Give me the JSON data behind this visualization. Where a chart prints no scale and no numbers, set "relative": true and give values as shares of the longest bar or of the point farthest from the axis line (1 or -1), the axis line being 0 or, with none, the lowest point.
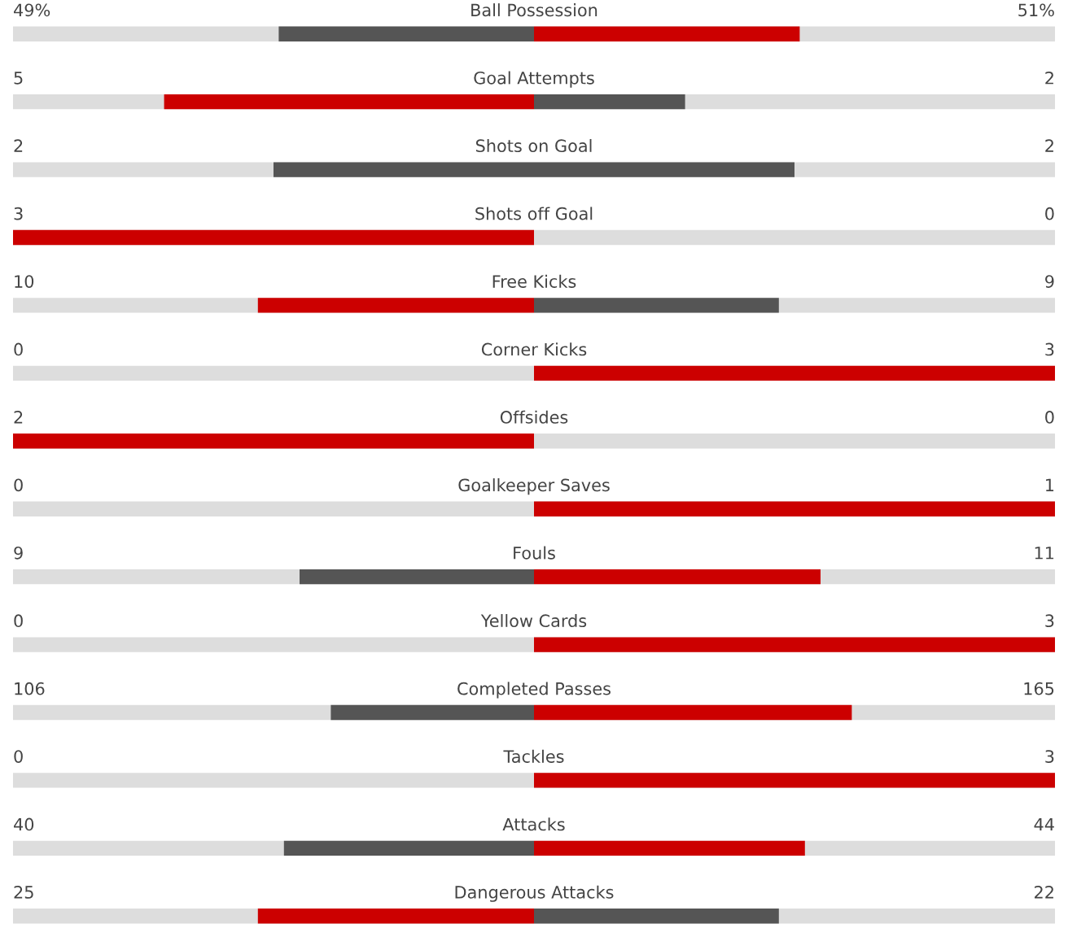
{
  "chart_data": {
    "type": "bar",
    "orientation": "horizontal",
    "relative": true,
    "stacked": true,
    "categories": [
      "Ball Possession",
      "Goal Attempts",
      "Shots on Goal",
      "Shots off Goal",
      "Free Kicks",
      "Corner Kicks",
      "Offsides",
      "Goalkeeper Saves",
      "Fouls",
      "Yellow Cards",
      "Completed Passes",
      "Tackles",
      "Attacks",
      "Dangerous Attacks"
    ],
    "series": [
      {
        "values": [
          -0.49,
          -0.71,
          -0.5,
          -1,
          -0.53,
          0,
          -1,
          0,
          -0.45,
          0,
          -0.39,
          0,
          -0.48,
          -0.53
        ],
        "colors": [
          "#555555",
          "#cc0000",
          "#555555",
          "#cc0000",
          "#cc0000",
          "#555555",
          "#cc0000",
          "#555555",
          "#555555",
          "#555555",
          "#555555",
          "#555555",
          "#555555",
          "#cc0000"
        ]
      },
      {
        "values": [
          0.51,
          0.29,
          0.5,
          0,
          0.47,
          1,
          0,
          1,
          0.55,
          1,
          0.61,
          1,
          0.52,
          0.47
        ],
        "colors": [
          "#cc0000",
          "#555555",
          "#555555",
          "#555555",
          "#555555",
          "#cc0000",
          "#555555",
          "#cc0000",
          "#cc0000",
          "#cc0000",
          "#cc0000",
          "#cc0000",
          "#cc0000",
          "#555555"
        ]
      }
    ],
    "annotations": [
      "49%",
      "51%",
      "5",
      "2",
      "2",
      "2",
      "3",
      "0",
      "10",
      "9",
      "0",
      "3",
      "2",
      "0",
      "0",
      "1",
      "9",
      "11",
      "0",
      "3",
      "106",
      "165",
      "0",
      "3",
      "40",
      "44",
      "25",
      "22"
    ]
  }
}
